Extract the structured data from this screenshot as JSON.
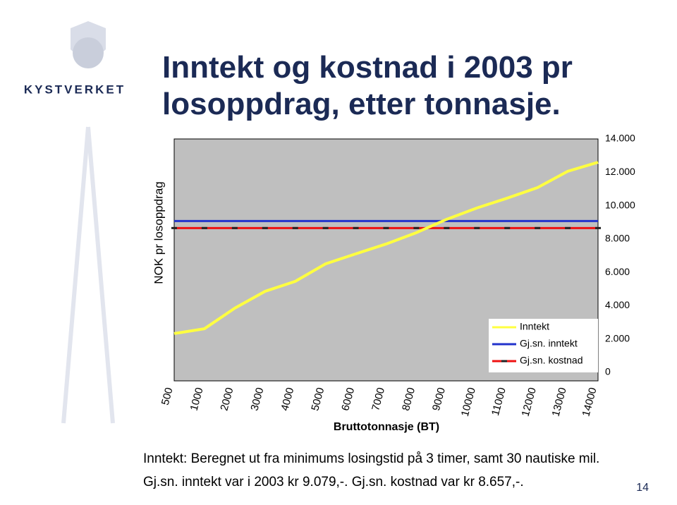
{
  "slide": {
    "title": "Inntekt og kostnad i 2003 pr losoppdrag, etter tonnasje.",
    "logo_text": "KYSTVERKET",
    "notes": [
      "Inntekt: Beregnet ut fra minimums losingstid på 3 timer, samt 30 nautiske mil.",
      "Gj.sn. inntekt var i 2003 kr 9.079,-. Gj.sn. kostnad var kr 8.657,-."
    ],
    "page_number": "14"
  },
  "chart_data": {
    "type": "line",
    "x_label": "Bruttotonnasje (BT)",
    "y_label": "NOK pr losoppdrag",
    "categories": [
      "500",
      "1000",
      "2000",
      "3000",
      "4000",
      "5000",
      "6000",
      "7000",
      "8000",
      "9000",
      "10000",
      "11000",
      "12000",
      "13000",
      "14000"
    ],
    "series": [
      {
        "name": "Inntekt",
        "color": "#ffff40",
        "values": [
          2330,
          2620,
          3850,
          4860,
          5460,
          6510,
          7110,
          7700,
          8380,
          9180,
          9860,
          10450,
          11080,
          12060,
          12600
        ]
      },
      {
        "name": "Gj.sn. inntekt",
        "color": "#2233cc",
        "values": [
          9079,
          9079,
          9079,
          9079,
          9079,
          9079,
          9079,
          9079,
          9079,
          9079,
          9079,
          9079,
          9079,
          9079,
          9079
        ]
      },
      {
        "name": "Gj.sn. kostnad",
        "color": "#ee1111",
        "values": [
          8657,
          8657,
          8657,
          8657,
          8657,
          8657,
          8657,
          8657,
          8657,
          8657,
          8657,
          8657,
          8657,
          8657,
          8657
        ]
      }
    ],
    "ylim": [
      0,
      14000
    ],
    "yticks": [
      0,
      {
        "value": 2000,
        "label": "2.000"
      },
      {
        "value": 4000,
        "label": "4.000"
      },
      {
        "value": 6000,
        "label": "6.000"
      },
      {
        "value": 8000,
        "label": "8.000"
      },
      {
        "value": 10000,
        "label": "10.000"
      },
      {
        "value": 12000,
        "label": "12.000"
      },
      {
        "value": 14000,
        "label": "14.000"
      }
    ],
    "grid": false
  }
}
